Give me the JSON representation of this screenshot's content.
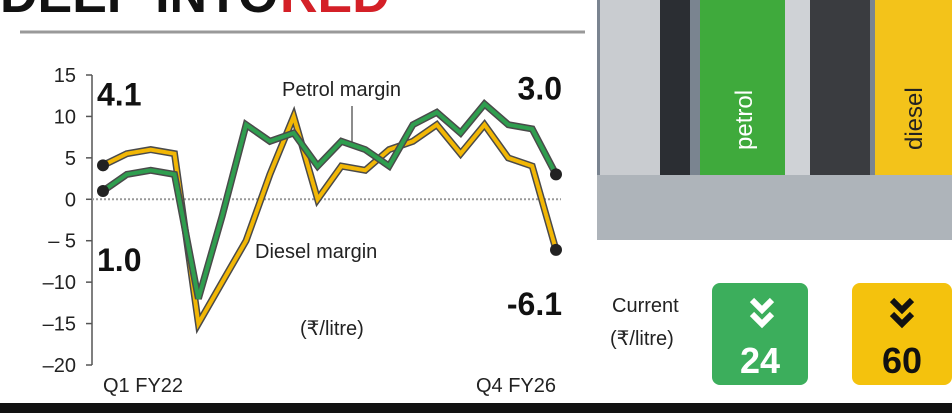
{
  "chart_data": {
    "type": "line",
    "title": "DEEP INTO",
    "title_highlight": "RED",
    "unit": "(₹/litre)",
    "categories": [
      "Q1 FY22",
      null,
      null,
      null,
      null,
      null,
      null,
      null,
      null,
      null,
      null,
      null,
      null,
      null,
      null,
      null,
      null,
      null,
      null,
      "Q4 FY26"
    ],
    "series": [
      {
        "name": "Petrol margin",
        "color": "#2f9e4f",
        "values": [
          1.0,
          3,
          3.5,
          3,
          -12,
          -2,
          9,
          7,
          8,
          4,
          7,
          6,
          4,
          9,
          10.5,
          8,
          11.5,
          9,
          8.5,
          3.0
        ],
        "value_labels": [
          "1.0",
          null,
          null,
          null,
          null,
          null,
          null,
          null,
          null,
          null,
          null,
          null,
          null,
          null,
          null,
          null,
          null,
          null,
          null,
          "3.0"
        ]
      },
      {
        "name": "Diesel margin",
        "color": "#f2b705",
        "values": [
          4.1,
          5.5,
          6,
          5.5,
          -15,
          -10,
          -5,
          3,
          10,
          0,
          4,
          3.5,
          6,
          7,
          9,
          5.5,
          9,
          5,
          4,
          -6.1
        ],
        "value_labels": [
          "4.1",
          null,
          null,
          null,
          null,
          null,
          null,
          null,
          null,
          null,
          null,
          null,
          null,
          null,
          null,
          null,
          null,
          null,
          null,
          "-6.1"
        ]
      }
    ],
    "ylim": [
      -20,
      15
    ],
    "yticks": [
      15,
      10,
      5,
      0,
      {
        "value": -5,
        "label": "– 5"
      },
      {
        "value": -10,
        "label": "–10"
      },
      {
        "value": -15,
        "label": "–15"
      },
      {
        "value": -20,
        "label": "–20"
      }
    ]
  },
  "current": {
    "label": [
      "Current",
      "(₹/litre)"
    ],
    "values": [
      "24",
      "60"
    ]
  },
  "photo": {
    "labels": [
      "petrol",
      "diesel"
    ]
  }
}
